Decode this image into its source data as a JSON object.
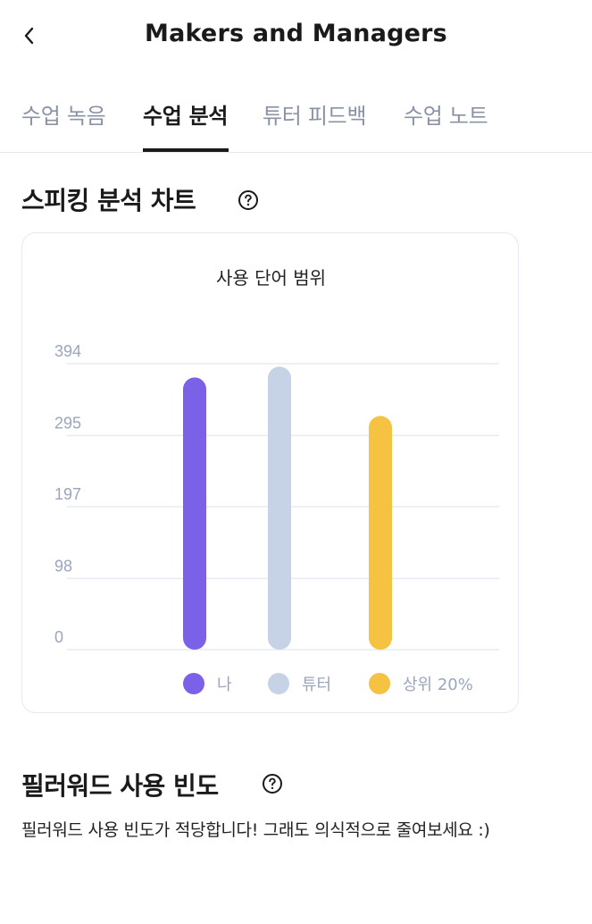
{
  "header": {
    "title": "Makers and Managers",
    "back_icon": "chevron-left-icon"
  },
  "tabs": [
    {
      "label": "수업 녹음",
      "active": false
    },
    {
      "label": "수업 분석",
      "active": true
    },
    {
      "label": "튜터 피드백",
      "active": false
    },
    {
      "label": "수업 노트",
      "active": false
    }
  ],
  "speaking_section": {
    "title": "스피킹 분석 차트",
    "help_icon": "question-circle-icon"
  },
  "chart_data": {
    "type": "bar",
    "title": "사용 단어 범위",
    "categories": [
      "나",
      "튜터",
      "상위 20%"
    ],
    "values": [
      375,
      390,
      322
    ],
    "colors": [
      "#7b61e8",
      "#c6d2e6",
      "#f5c242"
    ],
    "yticks": [
      "0",
      "98",
      "197",
      "295",
      "394"
    ],
    "ylim": [
      0,
      394
    ],
    "grid": true,
    "legend": [
      {
        "label": "나",
        "color": "#7b61e8"
      },
      {
        "label": "튜터",
        "color": "#c6d2e6"
      },
      {
        "label": "상위 20%",
        "color": "#f5c242"
      }
    ],
    "legend_position": "bottom"
  },
  "filler_section": {
    "title": "필러워드 사용 빈도",
    "help_icon": "question-circle-icon",
    "description": "필러워드 사용 빈도가 적당합니다! 그래도 의식적으로 줄여보세요 :)"
  }
}
